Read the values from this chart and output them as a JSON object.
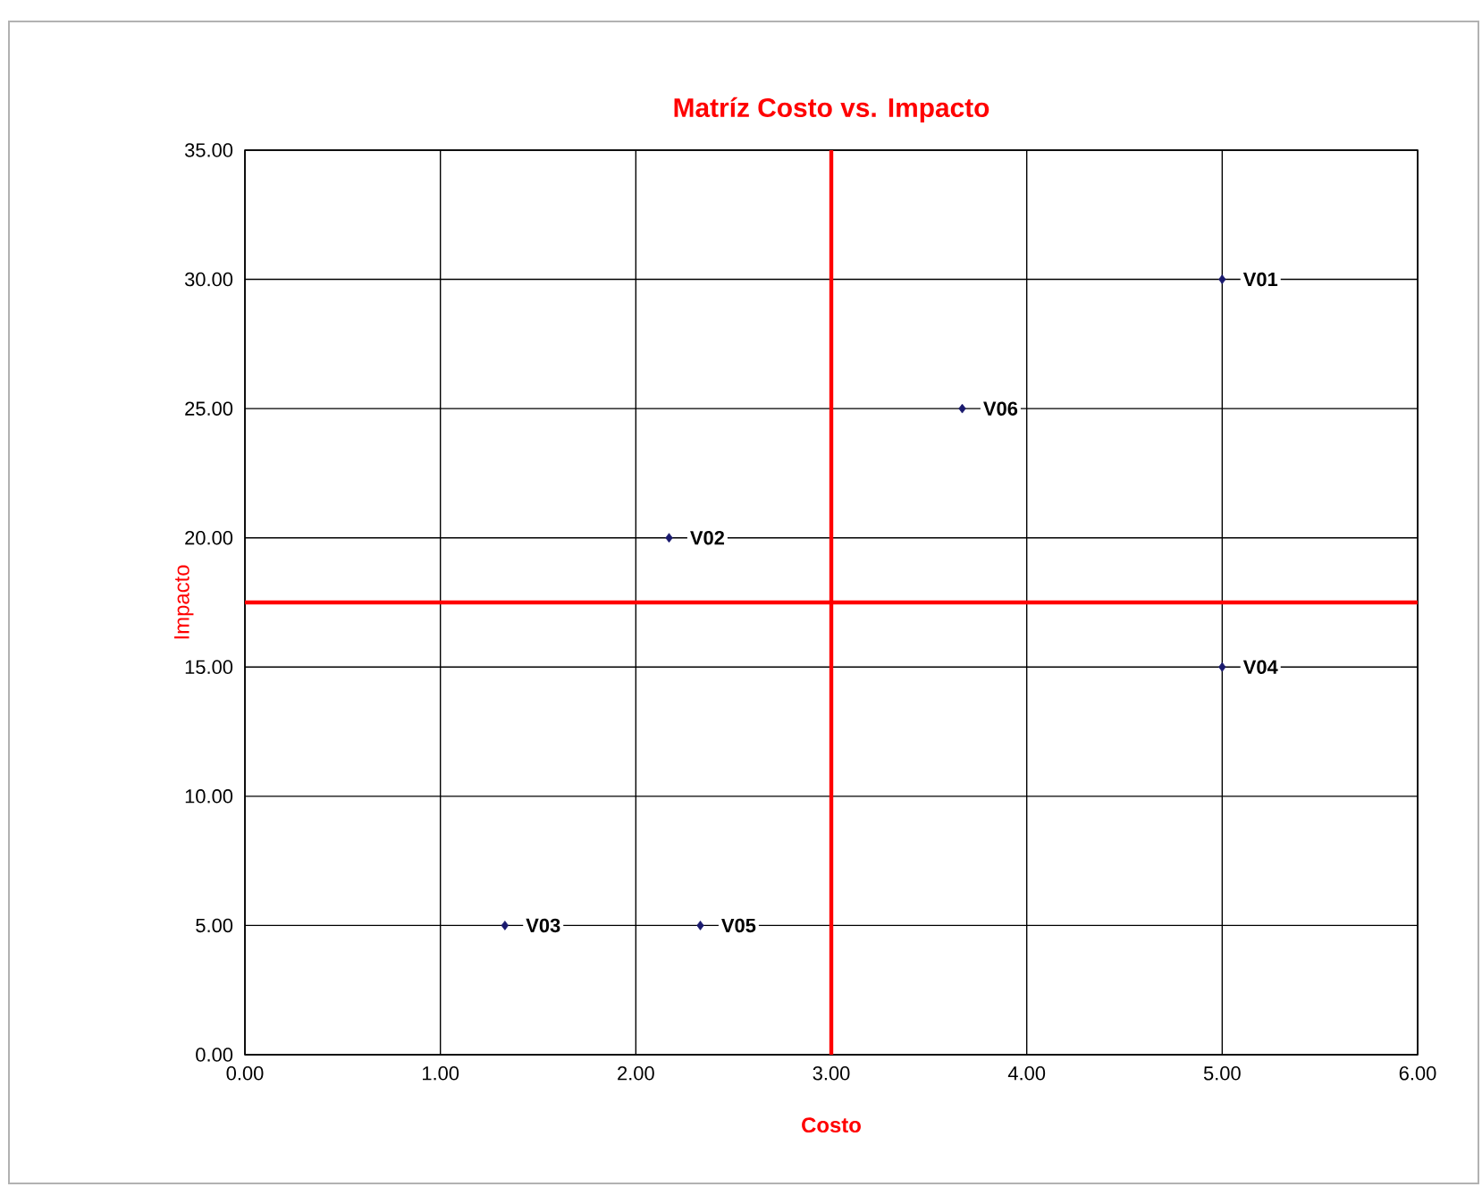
{
  "chart_data": {
    "type": "scatter",
    "title": "Matríz Costo vs. Impacto",
    "xlabel": "Costo",
    "ylabel": "Impacto",
    "x": [
      5,
      2.17,
      1.33,
      5,
      2.33,
      3.67
    ],
    "series": [
      {
        "color": "#1a1a6e",
        "values": [
          30,
          20,
          5,
          15,
          5,
          25
        ]
      }
    ],
    "marker": "diamond",
    "grid": true,
    "xlim": [
      0,
      6
    ],
    "ylim": [
      0,
      35
    ],
    "xticks": [
      {
        "value": 0,
        "label": "0.00"
      },
      {
        "value": 1,
        "label": "1.00"
      },
      {
        "value": 2,
        "label": "2.00"
      },
      {
        "value": 3,
        "label": "3.00"
      },
      {
        "value": 4,
        "label": "4.00"
      },
      {
        "value": 5,
        "label": "5.00"
      },
      {
        "value": 6,
        "label": "6.00"
      }
    ],
    "yticks": [
      {
        "value": 0,
        "label": "0.00"
      },
      {
        "value": 5,
        "label": "5.00"
      },
      {
        "value": 10,
        "label": "10.00"
      },
      {
        "value": 15,
        "label": "15.00"
      },
      {
        "value": 20,
        "label": "20.00"
      },
      {
        "value": 25,
        "label": "25.00"
      },
      {
        "value": 30,
        "label": "30.00"
      },
      {
        "value": 35,
        "label": "35.00"
      }
    ],
    "ref_lines": [
      {
        "axis": "x",
        "value": 3,
        "color": "#ff0000"
      },
      {
        "axis": "y",
        "value": 17.5,
        "color": "#ff0000"
      }
    ],
    "annotations": [
      {
        "text": "V01",
        "x": 5,
        "y": 30
      },
      {
        "text": "V02",
        "x": 2.17,
        "y": 20
      },
      {
        "text": "V03",
        "x": 1.33,
        "y": 5
      },
      {
        "text": "V04",
        "x": 5,
        "y": 15
      },
      {
        "text": "V05",
        "x": 2.33,
        "y": 5
      },
      {
        "text": "V06",
        "x": 3.67,
        "y": 25
      }
    ]
  }
}
